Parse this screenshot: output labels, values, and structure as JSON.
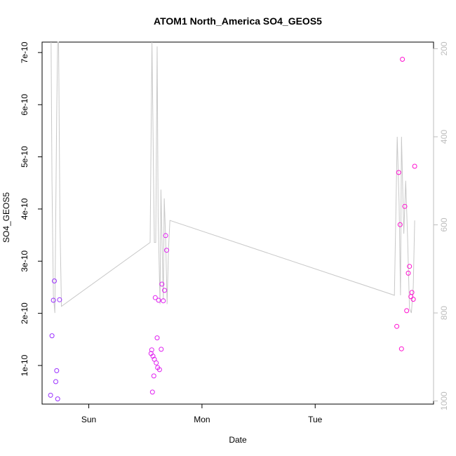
{
  "chart_data": {
    "type": "scatter",
    "title": "ATOM1 North_America SO4_GEOS5",
    "xlabel": "Date",
    "ylabel": "SO4_GEOS5",
    "y_ticks": [
      "1e-10",
      "2e-10",
      "3e-10",
      "4e-10",
      "5e-10",
      "6e-10",
      "7e-10"
    ],
    "y_tick_values": [
      1e-10,
      2e-10,
      3e-10,
      4e-10,
      5e-10,
      6e-10,
      7e-10
    ],
    "ylim": [
      2.6e-11,
      7.2e-10
    ],
    "x_tick_labels": [
      "Sun",
      "Mon",
      "Tue"
    ],
    "x_tick_values": [
      0,
      24,
      48
    ],
    "x_unit": "hours from Sunday 00:00",
    "xlim": [
      -9.9,
      73.1
    ],
    "y2_ticks": [
      "200",
      "400",
      "600",
      "800",
      "1000"
    ],
    "y2_tick_values": [
      200,
      400,
      600,
      800,
      1000
    ],
    "y2lim": [
      1007,
      185
    ],
    "y2_reversed": true,
    "grid": false,
    "colors": {
      "axis": "#000000",
      "pressure_line": "#c8c8c8",
      "point_early": "#8a2be2",
      "point_late": "#ff00ff",
      "secondary_axis": "#bdbdbd"
    },
    "points": [
      {
        "x": -8.1,
        "y": 4.3e-11,
        "color": "#9b30ff"
      },
      {
        "x": -7.8,
        "y": 1.57e-10,
        "color": "#9b30ff"
      },
      {
        "x": -7.5,
        "y": 2.25e-10,
        "color": "#9b30ff"
      },
      {
        "x": -7.3,
        "y": 2.62e-10,
        "color": "#9b30ff"
      },
      {
        "x": -7.0,
        "y": 6.9e-11,
        "color": "#9b30ff"
      },
      {
        "x": -6.8,
        "y": 9e-11,
        "color": "#9b30ff"
      },
      {
        "x": -6.6,
        "y": 3.6e-11,
        "color": "#9b30ff"
      },
      {
        "x": -6.2,
        "y": 2.26e-10,
        "color": "#9b30ff"
      },
      {
        "x": 13.2,
        "y": 1.23e-10,
        "color": "#e020f0"
      },
      {
        "x": 13.35,
        "y": 1.3e-10,
        "color": "#e020f0"
      },
      {
        "x": 13.5,
        "y": 4.9e-11,
        "color": "#e020f0"
      },
      {
        "x": 13.6,
        "y": 1.18e-10,
        "color": "#e020f0"
      },
      {
        "x": 13.8,
        "y": 8e-11,
        "color": "#e020f0"
      },
      {
        "x": 13.9,
        "y": 1.12e-10,
        "color": "#e020f0"
      },
      {
        "x": 14.1,
        "y": 2.3e-10,
        "color": "#e020f0"
      },
      {
        "x": 14.3,
        "y": 1.05e-10,
        "color": "#e020f0"
      },
      {
        "x": 14.5,
        "y": 1.53e-10,
        "color": "#e020f0"
      },
      {
        "x": 14.6,
        "y": 9.6e-11,
        "color": "#e020f0"
      },
      {
        "x": 14.8,
        "y": 2.25e-10,
        "color": "#e020f0"
      },
      {
        "x": 15.0,
        "y": 9.2e-11,
        "color": "#e020f0"
      },
      {
        "x": 15.35,
        "y": 1.31e-10,
        "color": "#e020f0"
      },
      {
        "x": 15.5,
        "y": 2.56e-10,
        "color": "#e020f0"
      },
      {
        "x": 15.8,
        "y": 2.24e-10,
        "color": "#e020f0"
      },
      {
        "x": 16.05,
        "y": 2.44e-10,
        "color": "#e020f0"
      },
      {
        "x": 16.3,
        "y": 3.49e-10,
        "color": "#e020f0"
      },
      {
        "x": 16.5,
        "y": 3.21e-10,
        "color": "#e020f0"
      },
      {
        "x": 65.3,
        "y": 1.75e-10,
        "color": "#ff10d0"
      },
      {
        "x": 65.7,
        "y": 4.7e-10,
        "color": "#ff10d0"
      },
      {
        "x": 66.0,
        "y": 3.7e-10,
        "color": "#ff10d0"
      },
      {
        "x": 66.3,
        "y": 1.32e-10,
        "color": "#ff10d0"
      },
      {
        "x": 66.5,
        "y": 6.87e-10,
        "color": "#ff10d0"
      },
      {
        "x": 67.0,
        "y": 4.05e-10,
        "color": "#ff10d0"
      },
      {
        "x": 67.4,
        "y": 2.05e-10,
        "color": "#ff10d0"
      },
      {
        "x": 67.75,
        "y": 2.77e-10,
        "color": "#ff10d0"
      },
      {
        "x": 68.0,
        "y": 2.9e-10,
        "color": "#ff10d0"
      },
      {
        "x": 68.3,
        "y": 2.32e-10,
        "color": "#ff10d0"
      },
      {
        "x": 68.5,
        "y": 2.4e-10,
        "color": "#ff10d0"
      },
      {
        "x": 68.8,
        "y": 2.27e-10,
        "color": "#ff10d0"
      },
      {
        "x": 69.1,
        "y": 4.82e-10,
        "color": "#ff10d0"
      }
    ],
    "pressure_line": [
      {
        "x": -8.0,
        "p": 185
      },
      {
        "x": -7.8,
        "p": 500
      },
      {
        "x": -7.5,
        "p": 760
      },
      {
        "x": -7.2,
        "p": 800
      },
      {
        "x": -6.8,
        "p": 350
      },
      {
        "x": -6.6,
        "p": 185
      },
      {
        "x": -6.4,
        "p": 185
      },
      {
        "x": -6.1,
        "p": 600
      },
      {
        "x": -5.8,
        "p": 785
      },
      {
        "x": 13.0,
        "p": 640
      },
      {
        "x": 13.4,
        "p": 185
      },
      {
        "x": 13.9,
        "p": 640
      },
      {
        "x": 14.2,
        "p": 640
      },
      {
        "x": 14.5,
        "p": 195
      },
      {
        "x": 14.7,
        "p": 580
      },
      {
        "x": 15.1,
        "p": 780
      },
      {
        "x": 15.3,
        "p": 520
      },
      {
        "x": 15.8,
        "p": 770
      },
      {
        "x": 16.0,
        "p": 540
      },
      {
        "x": 16.3,
        "p": 630
      },
      {
        "x": 16.6,
        "p": 780
      },
      {
        "x": 16.9,
        "p": 655
      },
      {
        "x": 17.2,
        "p": 590
      },
      {
        "x": 64.8,
        "p": 760
      },
      {
        "x": 65.4,
        "p": 400
      },
      {
        "x": 65.8,
        "p": 550
      },
      {
        "x": 66.1,
        "p": 760
      },
      {
        "x": 66.3,
        "p": 400
      },
      {
        "x": 66.8,
        "p": 620
      },
      {
        "x": 67.2,
        "p": 500
      },
      {
        "x": 67.6,
        "p": 630
      },
      {
        "x": 68.0,
        "p": 790
      },
      {
        "x": 68.4,
        "p": 800
      },
      {
        "x": 68.8,
        "p": 740
      },
      {
        "x": 69.1,
        "p": 590
      }
    ]
  }
}
